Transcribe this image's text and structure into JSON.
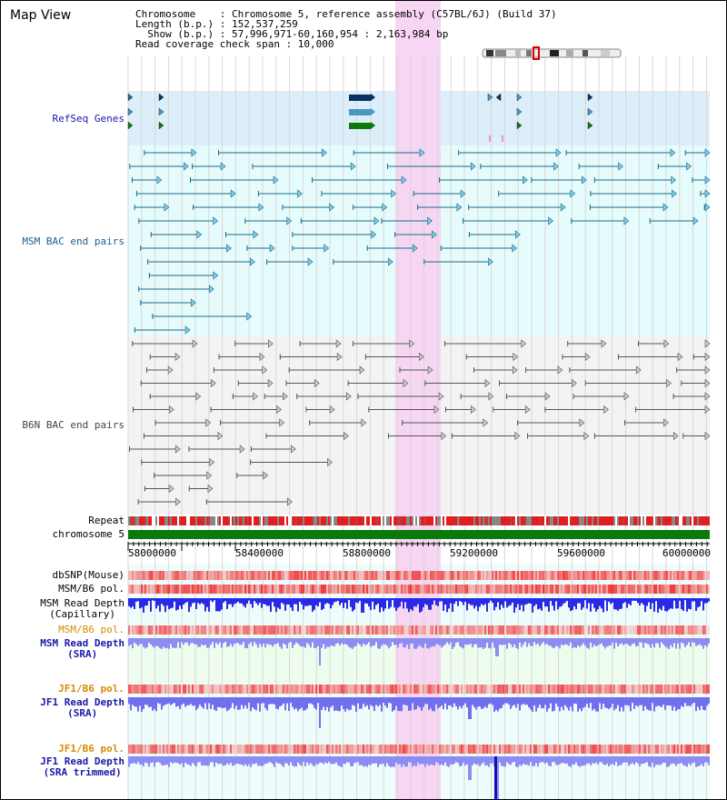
{
  "window": {
    "title": "Map View"
  },
  "header": {
    "line1": "Chromosome    : Chromosome 5, reference assembly (C57BL/6J) (Build 37)",
    "line2": "Length (b.p.) : 152,537,259",
    "line3": "  Show (b.p.) : 57,996,971-60,160,954 : 2,163,984 bp",
    "line4": "Read coverage check span : 10,000"
  },
  "tracks": {
    "refseq": "RefSeq Genes",
    "msm_bac": "MSM BAC end pairs",
    "b6n_bac": "B6N BAC end pairs",
    "repeat": "Repeat",
    "chrom": "chromosome 5",
    "dbsnp": "dbSNP(Mouse)",
    "msm_b6_pol_1": "MSM/B6 pol.",
    "msm_depth_cap": "MSM Read Depth\n(Capillary)",
    "msm_b6_pol_2": "MSM/B6 pol.",
    "msm_depth_sra": "MSM Read Depth\n(SRA)",
    "jf1_b6_pol_1": "JF1/B6 pol.",
    "jf1_depth_sra": "JF1 Read Depth\n(SRA)",
    "jf1_b6_pol_2": "JF1/B6 pol.",
    "jf1_depth_trim": "JF1 Read Depth\n(SRA trimmed)"
  },
  "axis": {
    "ticks": [
      "58000000",
      "58400000",
      "58800000",
      "59200000",
      "59600000",
      "60000000"
    ]
  },
  "colors": {
    "refseq_bg": "#dceefa",
    "msm_bg": "#e6fbfb",
    "b6n_bg": "#f3f3f3",
    "highlight": "#f6d6f2",
    "chrom": "#0a7a0a",
    "depth_blue": "#2a2ae6",
    "depth_light": "#8c8cf2"
  }
}
